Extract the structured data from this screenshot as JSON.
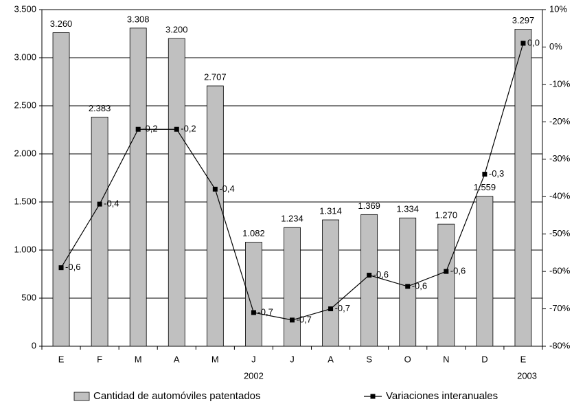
{
  "chart_data": {
    "type": "bar_line",
    "categories": [
      "E",
      "F",
      "M",
      "A",
      "M",
      "J",
      "J",
      "A",
      "S",
      "O",
      "N",
      "D",
      "E"
    ],
    "x_groups": [
      "2002",
      "2003"
    ],
    "series": [
      {
        "name": "Cantidad de automóviles patentados",
        "type": "bar",
        "color": "#c0c0c0",
        "values": [
          3260,
          2383,
          3308,
          3200,
          2707,
          1082,
          1234,
          1314,
          1369,
          1334,
          1270,
          1559,
          3297
        ],
        "value_labels": [
          "3.260",
          "2.383",
          "3.308",
          "3.200",
          "2.707",
          "1.082",
          "1.234",
          "1.314",
          "1.369",
          "1.334",
          "1.270",
          "1.559",
          "3.297"
        ]
      },
      {
        "name": "Variaciones interanuales",
        "type": "line",
        "axis": "y2",
        "color": "#000000",
        "values": [
          -59,
          -42,
          -22,
          -22,
          -38,
          -71,
          -73,
          -70,
          -61,
          -64,
          -60,
          -34,
          1
        ],
        "value_labels": [
          "-0,6",
          "-0,4",
          "-0,2",
          "-0,2",
          "-0,4",
          "-0,7",
          "-0,7",
          "-0,7",
          "-0,6",
          "-0,6",
          "-0,6",
          "-0,3",
          "0,0"
        ]
      }
    ],
    "ylim": [
      0,
      3500
    ],
    "yticks": [
      0,
      {
        "value": 500,
        "label": "500"
      },
      {
        "value": 1000,
        "label": "1.000"
      },
      {
        "value": 1500,
        "label": "1.500"
      },
      {
        "value": 2000,
        "label": "2.000"
      },
      {
        "value": 2500,
        "label": "2.500"
      },
      {
        "value": 3000,
        "label": "3.000"
      },
      {
        "value": 3500,
        "label": "3.500"
      }
    ],
    "y2lim": [
      -80,
      10
    ],
    "y2ticks": [
      {
        "value": -80,
        "label": "-80%"
      },
      {
        "value": -70,
        "label": "-70%"
      },
      {
        "value": -60,
        "label": "-60%"
      },
      {
        "value": -50,
        "label": "-50%"
      },
      {
        "value": -40,
        "label": "-40%"
      },
      {
        "value": -30,
        "label": "-30%"
      },
      {
        "value": -20,
        "label": "-20%"
      },
      {
        "value": -10,
        "label": "-10%"
      },
      {
        "value": 0,
        "label": "0%"
      },
      {
        "value": 10,
        "label": "10%"
      }
    ],
    "grid": true,
    "legend": "bottom"
  }
}
